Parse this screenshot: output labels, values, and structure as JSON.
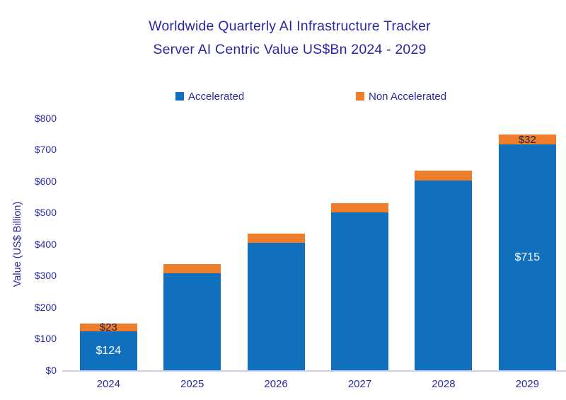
{
  "title": {
    "line1": "Worldwide Quarterly AI Infrastructure Tracker",
    "line2": "Server AI Centric Value US$Bn 2024 - 2029"
  },
  "legend": {
    "items": [
      {
        "label": "Accelerated",
        "color": "#1170BD"
      },
      {
        "label": "Non Accelerated",
        "color": "#EE7D2C"
      }
    ]
  },
  "colors": {
    "accelerated": "#1170BD",
    "non_accelerated": "#EE7D2C",
    "title_text": "#2A28A4",
    "axis_text": "#2B2AA3",
    "axis_line": "#C9CDF2",
    "bar_label_light": "#FFFFFF",
    "bar_label_dark": "#1C2150",
    "background": "#FFFFFF"
  },
  "chart_data": {
    "type": "bar",
    "stacked": true,
    "title": "Worldwide Quarterly AI Infrastructure Tracker Server AI Centric Value US$Bn 2024 - 2029",
    "categories": [
      "2024",
      "2025",
      "2026",
      "2027",
      "2028",
      "2029"
    ],
    "series": [
      {
        "name": "Accelerated",
        "color": "#1170BD",
        "values": [
          124,
          307,
          403,
          500,
          601,
          715
        ],
        "labels": [
          "$124",
          "",
          "",
          "",
          "",
          "$715"
        ],
        "label_color": "#FFFFFF"
      },
      {
        "name": "Non Accelerated",
        "color": "#EE7D2C",
        "values": [
          23,
          29,
          31,
          30,
          31,
          32
        ],
        "labels": [
          "$23",
          "",
          "",
          "",
          "",
          "$32"
        ],
        "label_color": "#1C2150"
      }
    ],
    "xlabel": "",
    "ylabel": "Value  (US$ Billion)",
    "y_ticks": [
      "$0",
      "$100",
      "$200",
      "$300",
      "$400",
      "$500",
      "$600",
      "$700",
      "$800"
    ],
    "ylim": [
      0,
      800
    ],
    "grid": false,
    "legend_position": "top"
  }
}
